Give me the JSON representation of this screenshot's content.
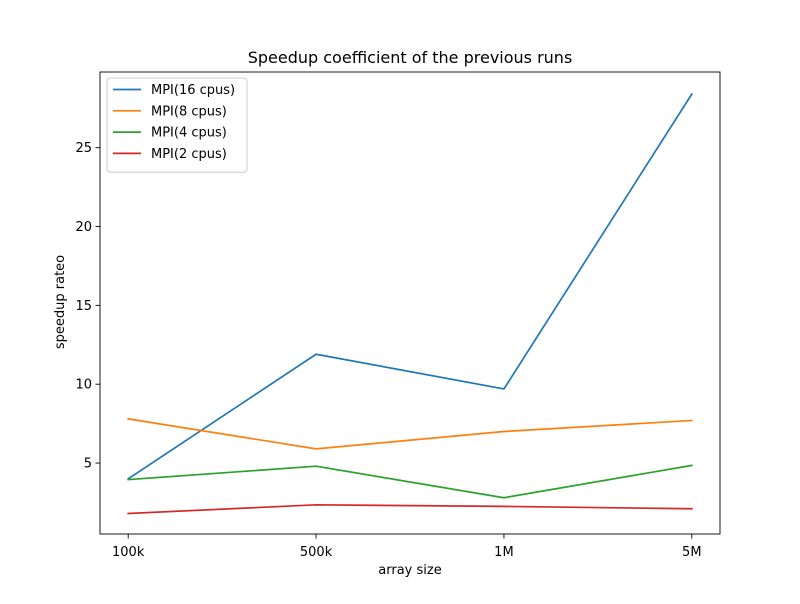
{
  "chart_data": {
    "type": "line",
    "title": "Speedup coefficient of the previous runs",
    "xlabel": "array size",
    "ylabel": "speedup rateo",
    "categories": [
      "100k",
      "500k",
      "1M",
      "5M"
    ],
    "yticks": [
      5,
      10,
      15,
      20,
      25
    ],
    "ylim": [
      0.5,
      29.8
    ],
    "grid": false,
    "legend_position": "top-left",
    "series": [
      {
        "name": "MPI(16 cpus)",
        "color": "#1f77b4",
        "values": [
          4.0,
          11.9,
          9.7,
          28.4
        ]
      },
      {
        "name": "MPI(8 cpus)",
        "color": "#ff7f0e",
        "values": [
          7.8,
          5.9,
          7.0,
          7.7
        ]
      },
      {
        "name": "MPI(4 cpus)",
        "color": "#2ca02c",
        "values": [
          3.95,
          4.8,
          2.8,
          4.85
        ]
      },
      {
        "name": "MPI(2 cpus)",
        "color": "#d62728",
        "values": [
          1.8,
          2.35,
          2.25,
          2.1
        ]
      }
    ]
  }
}
